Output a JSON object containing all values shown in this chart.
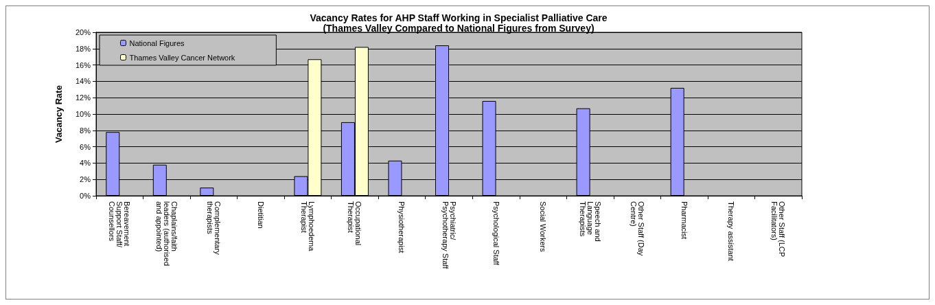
{
  "chart_data": {
    "type": "bar",
    "title": "Vacancy Rates for AHP Staff Working in Specialist Palliative Care\n(Thames Valley Compared to National Figures from Survey)",
    "ylabel": "Vacancy Rate",
    "categories": [
      "Bereavement Support Staff/Counsellors",
      "Chaplains/faith leaders (authorised and appointed)",
      "Complementary therapists",
      "Dietitian",
      "Lymphoedema Therapist",
      "Occupational Therapist",
      "Physiotherapist",
      "Psychiatric/Psychotherapy Staff",
      "Psychological Staff",
      "Social Workers",
      "Speech and Language Therapists",
      "Other Staff (Day Centre)",
      "Pharmacist",
      "Therapy assistant",
      "Other Staff (LCP Facilitators)"
    ],
    "series": [
      {
        "name": "National Figures",
        "color": "#9999ff",
        "values": [
          7.8,
          3.8,
          1.0,
          null,
          2.4,
          9.0,
          4.3,
          18.4,
          11.6,
          null,
          10.7,
          null,
          13.2,
          null,
          null
        ]
      },
      {
        "name": "Thames Valley Cancer Network",
        "color": "#ffffcc",
        "values": [
          null,
          null,
          null,
          null,
          16.7,
          18.2,
          null,
          null,
          null,
          null,
          null,
          null,
          null,
          null,
          null
        ]
      }
    ],
    "ylim": [
      0,
      20
    ],
    "yticks": [
      {
        "value": 0,
        "label": "0%"
      },
      {
        "value": 2,
        "label": "2%"
      },
      {
        "value": 4,
        "label": "4%"
      },
      {
        "value": 6,
        "label": "6%"
      },
      {
        "value": 8,
        "label": "8%"
      },
      {
        "value": 10,
        "label": "10%"
      },
      {
        "value": 12,
        "label": "12%"
      },
      {
        "value": 14,
        "label": "14%"
      },
      {
        "value": 16,
        "label": "16%"
      },
      {
        "value": 18,
        "label": "18%"
      },
      {
        "value": 20,
        "label": "20%"
      }
    ],
    "grid": "y",
    "legend": "top left"
  }
}
